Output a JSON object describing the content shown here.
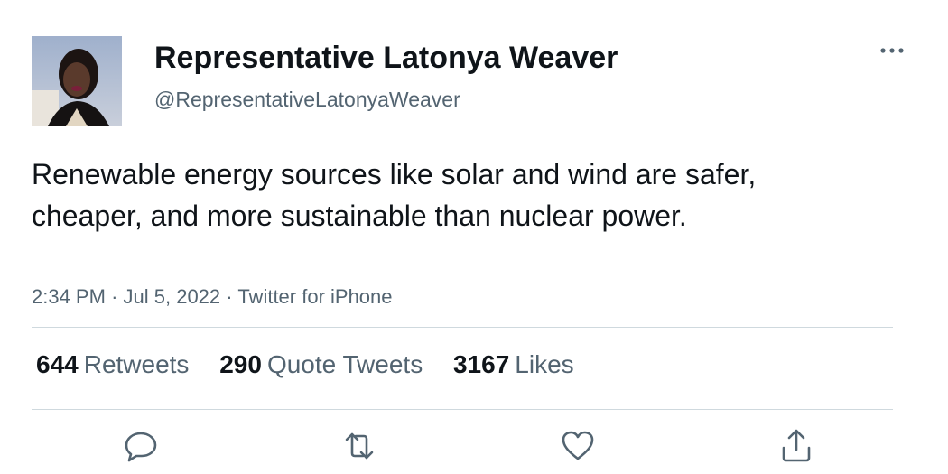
{
  "author": {
    "display_name": "Representative Latonya Weaver",
    "handle": "@RepresentativeLatonyaWeaver"
  },
  "tweet": {
    "text": "Renewable energy sources like solar and wind are safer, cheaper, and more sustainable than nuclear power.",
    "time": "2:34 PM",
    "date": "Jul 5, 2022",
    "source": "Twitter for iPhone",
    "separator": "·"
  },
  "stats": {
    "retweets_count": "644",
    "retweets_label": "Retweets",
    "quotes_count": "290",
    "quotes_label": "Quote Tweets",
    "likes_count": "3167",
    "likes_label": "Likes"
  },
  "icons": {
    "more": "more-horizontal-icon",
    "reply": "reply-icon",
    "retweet": "retweet-icon",
    "like": "heart-icon",
    "share": "share-icon"
  },
  "colors": {
    "text_primary": "#0f1419",
    "text_secondary": "#536471",
    "divider": "#cfd9de",
    "icon": "#536471"
  }
}
